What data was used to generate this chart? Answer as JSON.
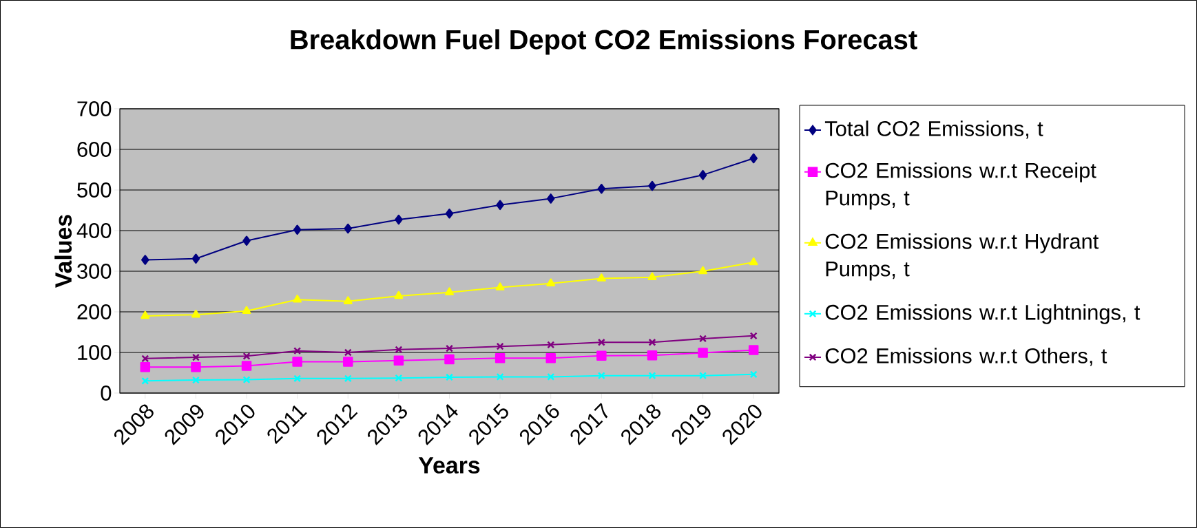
{
  "chart_data": {
    "type": "line",
    "title": "Breakdown Fuel Depot CO2 Emissions Forecast",
    "xlabel": "Years",
    "ylabel": "Values",
    "categories": [
      "2008",
      "2009",
      "2010",
      "2011",
      "2012",
      "2013",
      "2014",
      "2015",
      "2016",
      "2017",
      "2018",
      "2019",
      "2020"
    ],
    "ylim": [
      0,
      700
    ],
    "yticks": [
      0,
      100,
      200,
      300,
      400,
      500,
      600,
      700
    ],
    "grid": "y",
    "legend": "right",
    "series": [
      {
        "name": "Total CO2 Emissions, t",
        "color": "#000080",
        "marker": "diamond",
        "values": [
          328,
          331,
          375,
          402,
          405,
          427,
          442,
          463,
          479,
          503,
          510,
          537,
          578
        ]
      },
      {
        "name": "CO2 Emissions w.r.t Receipt Pumps, t",
        "color": "#ff00ff",
        "marker": "square",
        "values": [
          64,
          64,
          67,
          77,
          77,
          80,
          83,
          86,
          86,
          92,
          93,
          99,
          106
        ]
      },
      {
        "name": "CO2 Emissions w.r.t Hydrant Pumps, t",
        "color": "#ffff00",
        "marker": "triangle",
        "values": [
          190,
          193,
          202,
          230,
          226,
          239,
          248,
          260,
          270,
          282,
          285,
          300,
          322
        ]
      },
      {
        "name": "CO2 Emissions w.r.t Lightnings, t",
        "color": "#00ffff",
        "marker": "cross",
        "values": [
          30,
          32,
          33,
          36,
          36,
          37,
          39,
          40,
          40,
          43,
          43,
          43,
          46
        ]
      },
      {
        "name": "CO2 Emissions w.r.t Others, t",
        "color": "#800080",
        "marker": "cross",
        "values": [
          85,
          88,
          91,
          104,
          100,
          107,
          110,
          115,
          119,
          125,
          125,
          134,
          141
        ]
      }
    ]
  }
}
